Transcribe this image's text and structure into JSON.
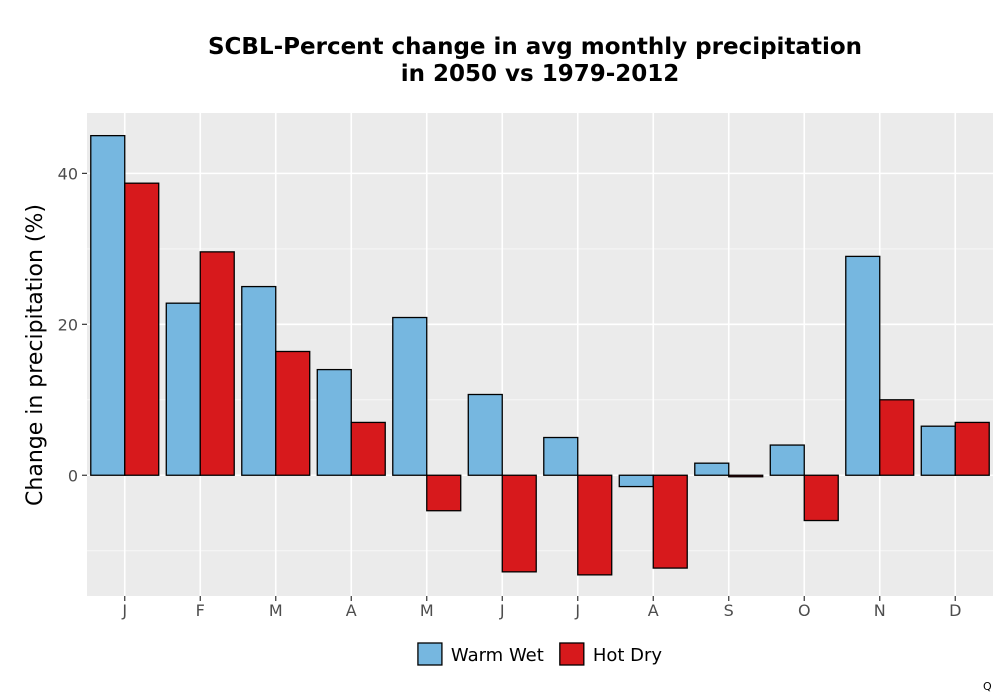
{
  "chart_data": {
    "type": "bar",
    "title_lines": [
      "SCBL-Percent change in avg monthly precipitation",
      "in 2050 vs 1979-2012"
    ],
    "xlabel": "",
    "ylabel": "Change in precipitation (%)",
    "categories": [
      "J",
      "F",
      "M",
      "A",
      "M",
      "J",
      "J",
      "A",
      "S",
      "O",
      "N",
      "D"
    ],
    "series": [
      {
        "name": "Warm Wet",
        "color": "#76b7e0",
        "values": [
          45,
          22.8,
          25,
          14,
          20.9,
          10.7,
          5,
          -1.5,
          1.6,
          4,
          29,
          6.5
        ]
      },
      {
        "name": "Hot Dry",
        "color": "#d7191c",
        "values": [
          38.7,
          29.6,
          16.4,
          7,
          -4.7,
          -12.8,
          -13.2,
          -12.3,
          -0.2,
          -6,
          10,
          7
        ]
      }
    ],
    "ylim": [
      -16,
      48
    ],
    "yticks": [
      0,
      20,
      40
    ],
    "grid": true,
    "legend_position": "bottom"
  },
  "corner_mark": "Q"
}
